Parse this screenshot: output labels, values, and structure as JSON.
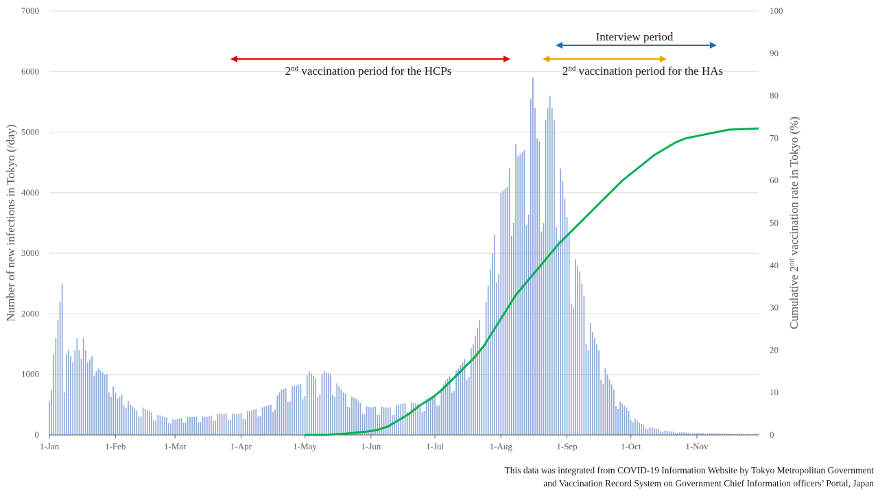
{
  "chart_data": {
    "type": "bar",
    "y_left": {
      "label": "Number of new infections in Tokyo (/day)",
      "ylim": [
        0,
        7000
      ],
      "ticks": [
        0,
        1000,
        2000,
        3000,
        4000,
        5000,
        6000,
        7000
      ]
    },
    "y_right": {
      "label_parts": [
        "Cumulative 2",
        "nd",
        " vaccination rate in Tokyo (%)"
      ],
      "ylim": [
        0,
        100
      ],
      "ticks": [
        0,
        10,
        20,
        30,
        40,
        50,
        60,
        70,
        80,
        90,
        100
      ]
    },
    "x_axis": {
      "unit": "day of 2021",
      "range_days": [
        1,
        334
      ],
      "ticks": [
        {
          "label": "1-Jan",
          "day": 1
        },
        {
          "label": "1-Feb",
          "day": 32
        },
        {
          "label": "1-Mar",
          "day": 60
        },
        {
          "label": "1-Apr",
          "day": 91
        },
        {
          "label": "1-May",
          "day": 121
        },
        {
          "label": "1-Jun",
          "day": 152
        },
        {
          "label": "1-Jul",
          "day": 182
        },
        {
          "label": "1-Aug",
          "day": 213
        },
        {
          "label": "1-Sep",
          "day": 244
        },
        {
          "label": "1-Oct",
          "day": 274
        },
        {
          "label": "1-Nov",
          "day": 305
        }
      ]
    },
    "grid": true,
    "infection_bars": {
      "color": "#8eaadb",
      "points": [
        [
          1,
          800
        ],
        [
          8,
          1000
        ],
        [
          4,
          1600
        ],
        [
          7,
          2500
        ],
        [
          8,
          2400
        ],
        [
          10,
          1400
        ],
        [
          12,
          1200
        ],
        [
          14,
          1600
        ],
        [
          15,
          2000
        ],
        [
          17,
          1600
        ],
        [
          19,
          1200
        ],
        [
          21,
          1300
        ],
        [
          23,
          1500
        ],
        [
          24,
          1100
        ],
        [
          27,
          1000
        ],
        [
          29,
          1000
        ],
        [
          31,
          800
        ],
        [
          33,
          600
        ],
        [
          36,
          700
        ],
        [
          39,
          500
        ],
        [
          42,
          400
        ],
        [
          45,
          450
        ],
        [
          50,
          350
        ],
        [
          55,
          300
        ],
        [
          60,
          250
        ],
        [
          65,
          300
        ],
        [
          70,
          300
        ],
        [
          75,
          300
        ],
        [
          80,
          350
        ],
        [
          85,
          350
        ],
        [
          90,
          350
        ],
        [
          95,
          400
        ],
        [
          100,
          450
        ],
        [
          105,
          500
        ],
        [
          110,
          750
        ],
        [
          115,
          800
        ],
        [
          120,
          850
        ],
        [
          123,
          1050
        ],
        [
          127,
          900
        ],
        [
          130,
          1050
        ],
        [
          133,
          1000
        ],
        [
          136,
          850
        ],
        [
          139,
          700
        ],
        [
          142,
          650
        ],
        [
          145,
          600
        ],
        [
          148,
          500
        ],
        [
          152,
          450
        ],
        [
          155,
          480
        ],
        [
          160,
          450
        ],
        [
          165,
          500
        ],
        [
          170,
          550
        ],
        [
          175,
          500
        ],
        [
          178,
          600
        ],
        [
          181,
          650
        ],
        [
          184,
          700
        ],
        [
          187,
          900
        ],
        [
          190,
          1000
        ],
        [
          193,
          1100
        ],
        [
          197,
          1300
        ],
        [
          200,
          1500
        ],
        [
          203,
          1900
        ],
        [
          206,
          2200
        ],
        [
          209,
          3000
        ],
        [
          211,
          3600
        ],
        [
          213,
          4000
        ],
        [
          216,
          4100
        ],
        [
          219,
          5000
        ],
        [
          221,
          4600
        ],
        [
          224,
          4700
        ],
        [
          226,
          5200
        ],
        [
          228,
          5900
        ],
        [
          230,
          4900
        ],
        [
          232,
          4800
        ],
        [
          234,
          5200
        ],
        [
          236,
          5600
        ],
        [
          238,
          5200
        ],
        [
          240,
          4600
        ],
        [
          242,
          4200
        ],
        [
          244,
          3600
        ],
        [
          246,
          3100
        ],
        [
          248,
          2900
        ],
        [
          250,
          2700
        ],
        [
          252,
          2300
        ],
        [
          254,
          2000
        ],
        [
          256,
          1700
        ],
        [
          258,
          1500
        ],
        [
          260,
          1300
        ],
        [
          263,
          1000
        ],
        [
          266,
          750
        ],
        [
          269,
          550
        ],
        [
          272,
          450
        ],
        [
          275,
          300
        ],
        [
          278,
          200
        ],
        [
          281,
          150
        ],
        [
          284,
          120
        ],
        [
          288,
          80
        ],
        [
          292,
          60
        ],
        [
          296,
          50
        ],
        [
          300,
          40
        ],
        [
          305,
          30
        ],
        [
          310,
          30
        ],
        [
          315,
          25
        ],
        [
          320,
          25
        ],
        [
          325,
          20
        ],
        [
          330,
          20
        ],
        [
          334,
          20
        ]
      ]
    },
    "vaccination_line": {
      "color": "#00b050",
      "points": [
        [
          121,
          0
        ],
        [
          130,
          0
        ],
        [
          140,
          0.3
        ],
        [
          150,
          0.8
        ],
        [
          155,
          1.2
        ],
        [
          160,
          2
        ],
        [
          165,
          3.5
        ],
        [
          170,
          5
        ],
        [
          175,
          7
        ],
        [
          180,
          8.5
        ],
        [
          185,
          10.5
        ],
        [
          190,
          13
        ],
        [
          195,
          15.5
        ],
        [
          200,
          18
        ],
        [
          205,
          21
        ],
        [
          210,
          25
        ],
        [
          215,
          29
        ],
        [
          220,
          33
        ],
        [
          225,
          36
        ],
        [
          230,
          39
        ],
        [
          235,
          42
        ],
        [
          240,
          45
        ],
        [
          245,
          47.5
        ],
        [
          250,
          50
        ],
        [
          255,
          52.5
        ],
        [
          260,
          55
        ],
        [
          265,
          57.5
        ],
        [
          270,
          60
        ],
        [
          275,
          62
        ],
        [
          280,
          64
        ],
        [
          285,
          66
        ],
        [
          290,
          67.5
        ],
        [
          295,
          69
        ],
        [
          300,
          70
        ],
        [
          305,
          70.5
        ],
        [
          310,
          71
        ],
        [
          315,
          71.5
        ],
        [
          320,
          72
        ],
        [
          325,
          72.1
        ],
        [
          330,
          72.2
        ],
        [
          334,
          72.3
        ]
      ]
    },
    "annotations": {
      "hcp_label_sup": "nd",
      "hcp_label_prefix": "2",
      "hcp_label_text": " vaccination period for the HCPs",
      "hcp_color": "#e00000",
      "ha_label_prefix": "2",
      "ha_label_sup": "nd",
      "ha_label_text": " vaccination period for the HAs",
      "ha_color": "#f2a000",
      "interview_label": "Interview period",
      "interview_color": "#1f6fb2"
    }
  },
  "source": {
    "line1": "This data was integrated from COVID-19 Information Website by Tokyo Metropolitan Government",
    "line2": "and Vaccination Record System on Government Chief Information officers’ Portal, Japan"
  }
}
